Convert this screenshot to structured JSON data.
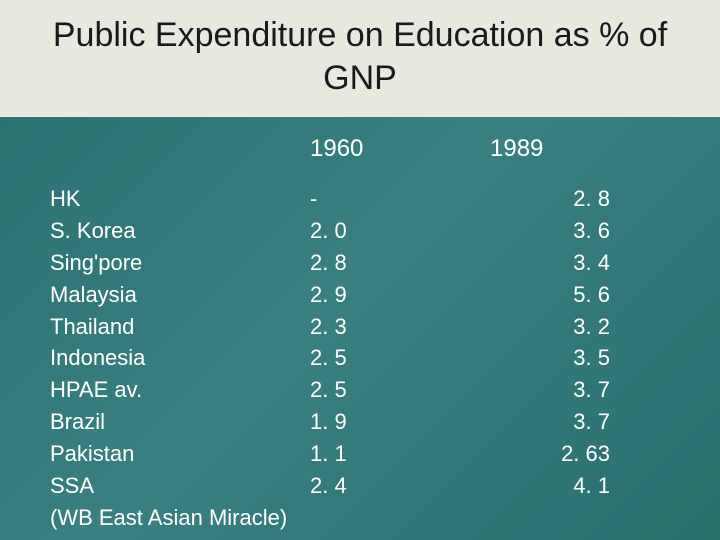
{
  "title": "Public Expenditure on Education as % of GNP",
  "columns": {
    "year1": "1960",
    "year2": "1989"
  },
  "rows": [
    {
      "country": "HK",
      "y1960": "-",
      "y1989": "2. 8"
    },
    {
      "country": "S. Korea",
      "y1960": "2. 0",
      "y1989": "3. 6"
    },
    {
      "country": "Sing'pore",
      "y1960": "2. 8",
      "y1989": "3. 4"
    },
    {
      "country": "Malaysia",
      "y1960": "2. 9",
      "y1989": "5. 6"
    },
    {
      "country": "Thailand",
      "y1960": "2. 3",
      "y1989": "3. 2"
    },
    {
      "country": "Indonesia",
      "y1960": "2. 5",
      "y1989": "3. 5"
    },
    {
      "country": "HPAE av.",
      "y1960": "2. 5",
      "y1989": "3. 7"
    },
    {
      "country": "Brazil",
      "y1960": "1. 9",
      "y1989": "3. 7"
    },
    {
      "country": "Pakistan",
      "y1960": "1. 1",
      "y1989": "2. 63"
    },
    {
      "country": "SSA",
      "y1960": "2. 4",
      "y1989": "4. 1"
    }
  ],
  "source": "(WB East Asian Miracle)",
  "colors": {
    "title_bg": "#e8e8e0",
    "title_text": "#1a1a1a",
    "body_text": "#ffffff",
    "bg_gradient_from": "#2a6e6e",
    "bg_gradient_to": "#3a8080"
  },
  "typography": {
    "title_fontsize": 34,
    "header_fontsize": 24,
    "body_fontsize": 22
  }
}
